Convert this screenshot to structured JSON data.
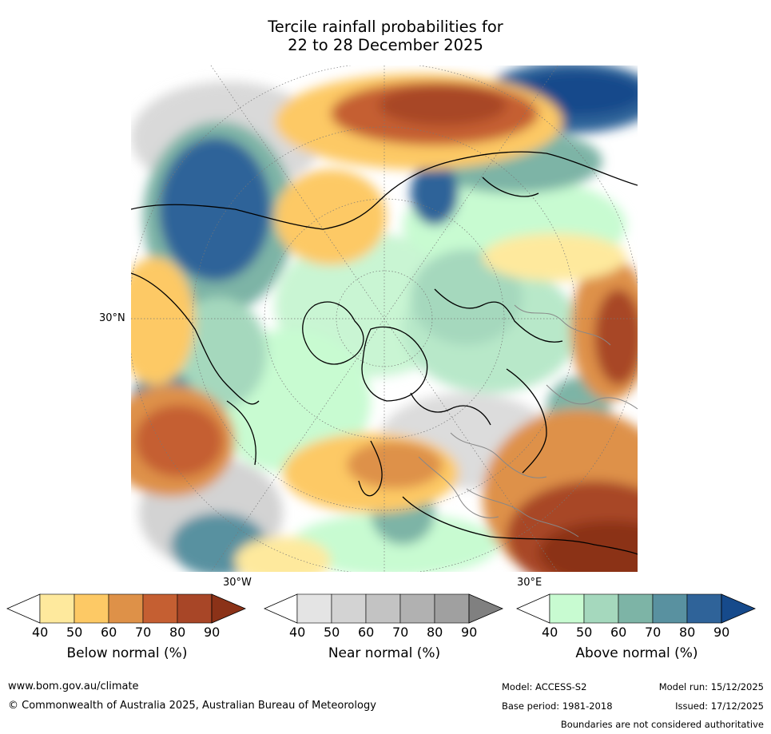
{
  "title": {
    "line1": "Tercile rainfall probabilities for",
    "line2": "22 to 28 December 2025"
  },
  "map": {
    "lat_label": "30°N",
    "lon_labels": [
      "30°W",
      "30°E"
    ]
  },
  "colorbars": [
    {
      "name": "Below normal (%)",
      "ticks": [
        "40",
        "50",
        "60",
        "70",
        "80",
        "90"
      ],
      "colors": [
        "#ffffff",
        "#fee99d",
        "#fdc965",
        "#de9148",
        "#c55f32",
        "#a84627",
        "#8b3218"
      ]
    },
    {
      "name": "Near normal (%)",
      "ticks": [
        "40",
        "50",
        "60",
        "70",
        "80",
        "90"
      ],
      "colors": [
        "#ffffff",
        "#e4e4e4",
        "#d3d3d3",
        "#c3c3c3",
        "#b1b1b1",
        "#a0a0a0",
        "#808080"
      ]
    },
    {
      "name": "Above normal (%)",
      "ticks": [
        "40",
        "50",
        "60",
        "70",
        "80",
        "90"
      ],
      "colors": [
        "#ffffff",
        "#c8fbd1",
        "#a5d8bd",
        "#7db4a6",
        "#5991a0",
        "#2f6399",
        "#164a8b"
      ]
    }
  ],
  "footer": {
    "url": "www.bom.gov.au/climate",
    "copyright": "© Commonwealth of Australia 2025, Australian Bureau of Meteorology",
    "model": "Model: ACCESS-S2",
    "base_period": "Base period: 1981-2018",
    "model_run": "Model run: 15/12/2025",
    "issued": "Issued: 17/12/2025",
    "disclaimer": "Boundaries are not considered authoritative"
  }
}
